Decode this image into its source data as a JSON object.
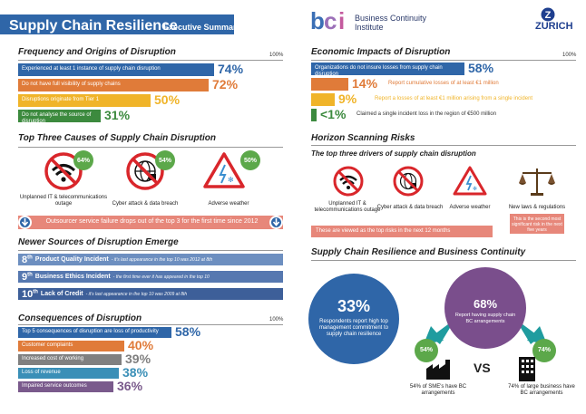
{
  "header": {
    "title": "Supply Chain Resilience",
    "subtitle": "Executive Summary",
    "bci_line1": "Business Continuity",
    "bci_line2": "Institute",
    "zurich": "ZURICH"
  },
  "frequency": {
    "title": "Frequency and Origins of Disruption",
    "scale_label": "100%",
    "bars": [
      {
        "text": "Experienced at least 1 instance of supply chain disruption",
        "pct": "74%",
        "value": 74,
        "color": "#2f66a8"
      },
      {
        "text": "Do not have full visibility of supply chains",
        "pct": "72%",
        "value": 72,
        "color": "#e07b39"
      },
      {
        "text": "Disruptions originate from Tier 1",
        "pct": "50%",
        "value": 50,
        "color": "#f0b429"
      },
      {
        "text": "Do not analyse the source of disruption",
        "pct": "31%",
        "value": 31,
        "color": "#3c8a3e"
      }
    ]
  },
  "causes": {
    "title": "Top Three Causes of Supply Chain Disruption",
    "items": [
      {
        "label": "Unplanned IT & telecommunications outage",
        "pct": "64%"
      },
      {
        "label": "Cyber attack & data breach",
        "pct": "54%"
      },
      {
        "label": "Adverse weather",
        "pct": "50%"
      }
    ],
    "footer": "Outsourcer service failure drops out of the top 3 for the first time since 2012"
  },
  "newer": {
    "title": "Newer Sources of Disruption Emerge",
    "items": [
      {
        "rank": "8",
        "suffix": "th",
        "label": "Product Quality Incident",
        "desc": "- it's last appearance in the top 10 was 2012 at 8th",
        "color": "#6d8fc0"
      },
      {
        "rank": "9",
        "suffix": "th",
        "label": "Business Ethics Incident",
        "desc": "- the first time ever it has appeared in the top 10",
        "color": "#5678b0"
      },
      {
        "rank": "10",
        "suffix": "th",
        "label": "Lack of Credit",
        "desc": "- it's last appearance in the top 10 was 2009 at 8th",
        "color": "#3d5f99"
      }
    ]
  },
  "consequences": {
    "title": "Consequences of Disruption",
    "scale_label": "100%",
    "bars": [
      {
        "text": "Top 5 consequences of disruption are loss of productivity",
        "pct": "58%",
        "value": 58,
        "color": "#2f66a8"
      },
      {
        "text": "Customer complaints",
        "pct": "40%",
        "value": 40,
        "color": "#e07b39"
      },
      {
        "text": "Increased cost of working",
        "pct": "39%",
        "value": 39,
        "color": "#808080"
      },
      {
        "text": "Loss of revenue",
        "pct": "38%",
        "value": 38,
        "color": "#3a8fb7"
      },
      {
        "text": "Impaired service outcomes",
        "pct": "36%",
        "value": 36,
        "color": "#7a5a8c"
      }
    ]
  },
  "economic": {
    "title": "Economic Impacts of Disruption",
    "scale_label": "100%",
    "bars": [
      {
        "text": "Organizations do not insure losses from supply chain disruption",
        "pct": "58%",
        "value": 58,
        "color": "#2f66a8"
      },
      {
        "text": "Report cumulative losses of at least €1 million",
        "pct": "14%",
        "value": 14,
        "color": "#e07b39"
      },
      {
        "text": "Report a losses of at least €1 million arising from a single incident",
        "pct": "9%",
        "value": 9,
        "color": "#f0b429"
      },
      {
        "text": "Claimed a single incident loss in the region of €500 million",
        "pct": "<1%",
        "value": 1,
        "color": "#3c8a3e"
      }
    ]
  },
  "horizon": {
    "title": "Horizon Scanning Risks",
    "subtitle": "The top three drivers of supply chain disruption",
    "items": [
      {
        "label": "Unplanned IT & telecommunications outage"
      },
      {
        "label": "Cyber attack & data breach"
      },
      {
        "label": "Adverse weather"
      },
      {
        "label": "New laws & regulations"
      }
    ],
    "note": "This is the second most significant risk in the next five years",
    "footer": "These are viewed as the top risks in the next 12 months"
  },
  "resilience": {
    "title": "Supply Chain Resilience and Business Continuity",
    "big_pct": "33%",
    "big_text": "Respondents report high top management commitment to supply chain resilience",
    "bc_pct": "68%",
    "bc_text": "Report having supply chain BC arrangements",
    "sme_pct": "54%",
    "sme_text": "54% of SME's have BC arrangements",
    "vs": "VS",
    "large_pct": "74%",
    "large_text": "74% of large business have BC arrangements"
  },
  "colors": {
    "blue": "#2f66a8",
    "green": "#5ca84a",
    "purple": "#7a4e8c",
    "red": "#d9262b",
    "salmon": "#e7877a"
  }
}
